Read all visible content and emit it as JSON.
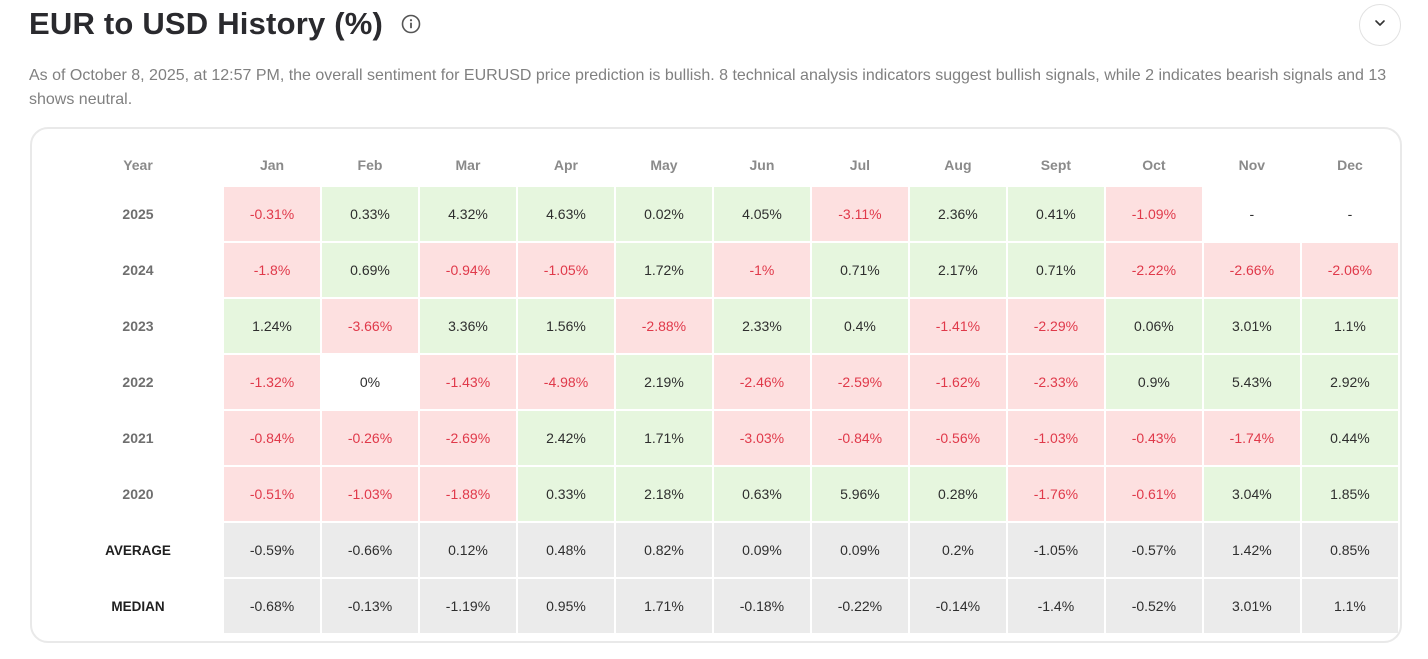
{
  "header": {
    "title": "EUR to USD History (%)",
    "info_icon": "info-circle-icon",
    "collapse_icon": "chevron-down-icon"
  },
  "description": "As of October 8, 2025, at 12:57 PM, the overall sentiment for EURUSD price prediction is bullish. 8 technical analysis indicators suggest bullish signals, while 2 indicates bearish signals and 13 shows neutral.",
  "colors": {
    "positive_bg": "#e6f6de",
    "negative_bg": "#fde0e0",
    "negative_text": "#e0394a",
    "stat_bg": "#ebebeb"
  },
  "table": {
    "year_header": "Year",
    "months": [
      "Jan",
      "Feb",
      "Mar",
      "Apr",
      "May",
      "Jun",
      "Jul",
      "Aug",
      "Sept",
      "Oct",
      "Nov",
      "Dec"
    ],
    "rows": [
      {
        "year": "2025",
        "values": [
          "-0.31%",
          "0.33%",
          "4.32%",
          "4.63%",
          "0.02%",
          "4.05%",
          "-3.11%",
          "2.36%",
          "0.41%",
          "-1.09%",
          "-",
          "-"
        ]
      },
      {
        "year": "2024",
        "values": [
          "-1.8%",
          "0.69%",
          "-0.94%",
          "-1.05%",
          "1.72%",
          "-1%",
          "0.71%",
          "2.17%",
          "0.71%",
          "-2.22%",
          "-2.66%",
          "-2.06%"
        ]
      },
      {
        "year": "2023",
        "values": [
          "1.24%",
          "-3.66%",
          "3.36%",
          "1.56%",
          "-2.88%",
          "2.33%",
          "0.4%",
          "-1.41%",
          "-2.29%",
          "0.06%",
          "3.01%",
          "1.1%"
        ]
      },
      {
        "year": "2022",
        "values": [
          "-1.32%",
          "0%",
          "-1.43%",
          "-4.98%",
          "2.19%",
          "-2.46%",
          "-2.59%",
          "-1.62%",
          "-2.33%",
          "0.9%",
          "5.43%",
          "2.92%"
        ]
      },
      {
        "year": "2021",
        "values": [
          "-0.84%",
          "-0.26%",
          "-2.69%",
          "2.42%",
          "1.71%",
          "-3.03%",
          "-0.84%",
          "-0.56%",
          "-1.03%",
          "-0.43%",
          "-1.74%",
          "0.44%"
        ]
      },
      {
        "year": "2020",
        "values": [
          "-0.51%",
          "-1.03%",
          "-1.88%",
          "0.33%",
          "2.18%",
          "0.63%",
          "5.96%",
          "0.28%",
          "-1.76%",
          "-0.61%",
          "3.04%",
          "1.85%"
        ]
      }
    ],
    "stats": [
      {
        "label": "AVERAGE",
        "values": [
          "-0.59%",
          "-0.66%",
          "0.12%",
          "0.48%",
          "0.82%",
          "0.09%",
          "0.09%",
          "0.2%",
          "-1.05%",
          "-0.57%",
          "1.42%",
          "0.85%"
        ]
      },
      {
        "label": "MEDIAN",
        "values": [
          "-0.68%",
          "-0.13%",
          "-1.19%",
          "0.95%",
          "1.71%",
          "-0.18%",
          "-0.22%",
          "-0.14%",
          "-1.4%",
          "-0.52%",
          "3.01%",
          "1.1%"
        ]
      }
    ]
  }
}
